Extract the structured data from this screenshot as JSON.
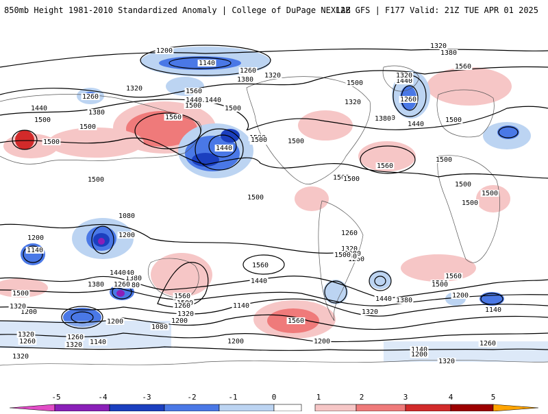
{
  "header": {
    "title_left": "850mb Height 1981-2010 Standardized Anomaly | College of DuPage NEXLAB",
    "title_right": "12Z GFS | F177 Valid: 21Z TUE APR 01 2025"
  },
  "colors": {
    "neg5": "#e14cc6",
    "neg4": "#8a1fb8",
    "neg3": "#1b3fbf",
    "neg2": "#4a78e6",
    "neg1": "#bcd4f2",
    "zero": "#ffffff",
    "pos1": "#f6c6c6",
    "pos2": "#ef7a7a",
    "pos3": "#d22a2a",
    "pos4": "#9c0000",
    "pos5": "#ffa400",
    "contour": "#000000",
    "coast": "#444444"
  },
  "colorbar": {
    "ticks": [
      "-5",
      "-4",
      "-3",
      "-2",
      "-1",
      "0",
      "1",
      "2",
      "3",
      "4",
      "5"
    ]
  },
  "contour_labels": [
    {
      "id": "l1",
      "text": "1320"
    },
    {
      "id": "l2",
      "text": "1380"
    },
    {
      "id": "l3",
      "text": "1200"
    },
    {
      "id": "l4",
      "text": "1140"
    },
    {
      "id": "l5",
      "text": "1260"
    },
    {
      "id": "l6",
      "text": "1320"
    },
    {
      "id": "l7",
      "text": "1380"
    },
    {
      "id": "l8",
      "text": "1440"
    },
    {
      "id": "l9",
      "text": "1500"
    },
    {
      "id": "l10",
      "text": "1440"
    },
    {
      "id": "l11",
      "text": "1500"
    },
    {
      "id": "l12",
      "text": "1560"
    },
    {
      "id": "l13",
      "text": "1500"
    },
    {
      "id": "l14",
      "text": "1440"
    },
    {
      "id": "l15",
      "text": "1380"
    },
    {
      "id": "l16",
      "text": "1320"
    },
    {
      "id": "l17",
      "text": "1260"
    },
    {
      "id": "l18",
      "text": "1320"
    },
    {
      "id": "l19",
      "text": "1380"
    },
    {
      "id": "l20",
      "text": "1440"
    },
    {
      "id": "l21",
      "text": "1500"
    },
    {
      "id": "l22",
      "text": "1560"
    },
    {
      "id": "l23",
      "text": "1500"
    },
    {
      "id": "l24",
      "text": "1440"
    },
    {
      "id": "l25",
      "text": "1500"
    },
    {
      "id": "l26",
      "text": "1500"
    },
    {
      "id": "l27",
      "text": "1500"
    },
    {
      "id": "l28",
      "text": "1500"
    },
    {
      "id": "l29",
      "text": "1500"
    },
    {
      "id": "l30",
      "text": "1500"
    },
    {
      "id": "l31",
      "text": "1500"
    },
    {
      "id": "l32",
      "text": "1500"
    },
    {
      "id": "l33",
      "text": "1500"
    },
    {
      "id": "l34",
      "text": "1500"
    },
    {
      "id": "l35",
      "text": "1500"
    },
    {
      "id": "l36",
      "text": "1560"
    },
    {
      "id": "l37",
      "text": "1560"
    },
    {
      "id": "l38",
      "text": "1440"
    },
    {
      "id": "l39",
      "text": "1380"
    },
    {
      "id": "l40",
      "text": "1260"
    },
    {
      "id": "l41",
      "text": "1320"
    },
    {
      "id": "l42",
      "text": "1200"
    },
    {
      "id": "l43",
      "text": "1140"
    },
    {
      "id": "l44",
      "text": "1080"
    },
    {
      "id": "l45",
      "text": "1200"
    },
    {
      "id": "l46",
      "text": "1260"
    },
    {
      "id": "l47",
      "text": "1320"
    },
    {
      "id": "l48",
      "text": "1260"
    },
    {
      "id": "l49",
      "text": "1080"
    },
    {
      "id": "l50",
      "text": "1140"
    },
    {
      "id": "l51",
      "text": "1560"
    },
    {
      "id": "l52",
      "text": "1500"
    },
    {
      "id": "l53",
      "text": "1440"
    },
    {
      "id": "l54",
      "text": "1320"
    },
    {
      "id": "l55",
      "text": "1260"
    },
    {
      "id": "l56",
      "text": "1200"
    },
    {
      "id": "l57",
      "text": "1200"
    },
    {
      "id": "l58",
      "text": "1260"
    },
    {
      "id": "l59",
      "text": "1320"
    },
    {
      "id": "l60",
      "text": "1080"
    },
    {
      "id": "l61",
      "text": "1140"
    },
    {
      "id": "l62",
      "text": "1320"
    },
    {
      "id": "l63",
      "text": "1260"
    },
    {
      "id": "l64",
      "text": "1200"
    },
    {
      "id": "l65",
      "text": "1380"
    },
    {
      "id": "l66",
      "text": "1440"
    },
    {
      "id": "l67",
      "text": "1380"
    },
    {
      "id": "l68",
      "text": "1560"
    },
    {
      "id": "l69",
      "text": "1500"
    },
    {
      "id": "l70",
      "text": "1320"
    },
    {
      "id": "l71",
      "text": "1260"
    },
    {
      "id": "l72",
      "text": "1200"
    },
    {
      "id": "l73",
      "text": "1140"
    },
    {
      "id": "l74",
      "text": "1140"
    },
    {
      "id": "l75",
      "text": "1200"
    },
    {
      "id": "l76",
      "text": "1140"
    },
    {
      "id": "l77",
      "text": "1200"
    },
    {
      "id": "l78",
      "text": "1260"
    },
    {
      "id": "l79",
      "text": "1320"
    },
    {
      "id": "l80",
      "text": "1500"
    },
    {
      "id": "l81",
      "text": "1500"
    },
    {
      "id": "l82",
      "text": "1560"
    },
    {
      "id": "l83",
      "text": "1500"
    },
    {
      "id": "l84",
      "text": "1500"
    },
    {
      "id": "l85",
      "text": "1500"
    },
    {
      "id": "l86",
      "text": "1500"
    },
    {
      "id": "l87",
      "text": "1500"
    },
    {
      "id": "l88",
      "text": "1440"
    },
    {
      "id": "l89",
      "text": "1500"
    },
    {
      "id": "l90",
      "text": "1380"
    },
    {
      "id": "l91",
      "text": "1320"
    },
    {
      "id": "l92",
      "text": "1320"
    },
    {
      "id": "l93",
      "text": "1380"
    },
    {
      "id": "l94",
      "text": "1440"
    },
    {
      "id": "l95",
      "text": "1560"
    },
    {
      "id": "l96",
      "text": "1200"
    }
  ]
}
